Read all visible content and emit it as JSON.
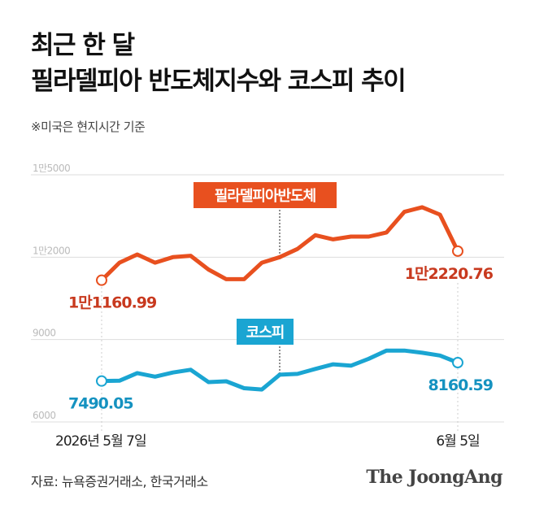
{
  "header": {
    "title_line1": "최근 한 달",
    "title_line2": "필라델피아 반도체지수와 코스피 추이",
    "note": "※미국은 현지시간 기준"
  },
  "footer": {
    "source": "자료: 뉴욕증권거래소, 한국거래소",
    "brand": "The JoongAng"
  },
  "chart_data": {
    "type": "line",
    "title": "필라델피아 반도체지수와 코스피 추이",
    "y_tick_labels": [
      "6000",
      "9000",
      "1만2000",
      "1만5000"
    ],
    "y_ticks": [
      6000,
      9000,
      12000,
      15000
    ],
    "ylim": [
      6000,
      15000
    ],
    "x_labels": {
      "start": "2026년 5월 7일",
      "end": "6월 5일"
    },
    "grid": true,
    "colors": {
      "sox": "#e8501f",
      "kospi": "#1aa5d2",
      "label_sox": "#c8391e",
      "label_kospi": "#1592c0"
    },
    "series": [
      {
        "name": "필라델피아반도체",
        "values": [
          11160.99,
          11800,
          12100,
          11800,
          12000,
          12050,
          11550,
          11200,
          11200,
          11800,
          12000,
          12300,
          12800,
          12650,
          12750,
          12750,
          12900,
          13650,
          13820,
          13550,
          12220.76
        ],
        "start_label": "1만1160.99",
        "end_label": "1만2220.76"
      },
      {
        "name": "코스피",
        "values": [
          7490.05,
          7500,
          7780,
          7650,
          7800,
          7900,
          7450,
          7480,
          7230,
          7180,
          7720,
          7750,
          7930,
          8100,
          8050,
          8300,
          8600,
          8600,
          8520,
          8420,
          8160.59
        ],
        "start_label": "7490.05",
        "end_label": "8160.59"
      }
    ]
  }
}
